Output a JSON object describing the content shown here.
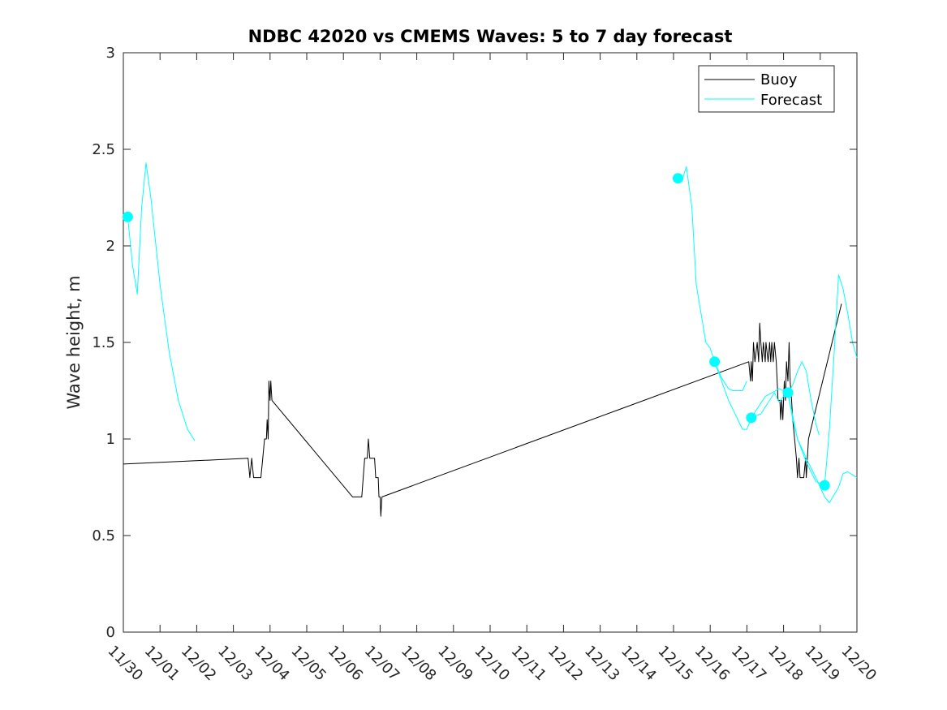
{
  "chart_data": {
    "type": "line",
    "title": "NDBC 42020 vs CMEMS Waves: 5 to 7 day forecast",
    "xlabel": "",
    "ylabel": "Wave height, m",
    "x_unit": "days since 11/30",
    "xlim": [
      0,
      20
    ],
    "ylim": [
      0,
      3
    ],
    "yticks": [
      0,
      0.5,
      1,
      1.5,
      2,
      2.5,
      3
    ],
    "ytick_labels": [
      "0",
      "0.5",
      "1",
      "1.5",
      "2",
      "2.5",
      "3"
    ],
    "xticks": [
      0,
      1,
      2,
      3,
      4,
      5,
      6,
      7,
      8,
      9,
      10,
      11,
      12,
      13,
      14,
      15,
      16,
      17,
      18,
      19,
      20
    ],
    "xtick_labels": [
      "11/30",
      "12/01",
      "12/02",
      "12/03",
      "12/04",
      "12/05",
      "12/06",
      "12/07",
      "12/08",
      "12/09",
      "12/10",
      "12/11",
      "12/12",
      "12/13",
      "12/14",
      "12/15",
      "12/16",
      "12/17",
      "12/18",
      "12/19",
      "12/20"
    ],
    "legend": {
      "placement": "top-right",
      "entries": [
        "Buoy",
        "Forecast"
      ]
    },
    "colors": {
      "buoy": "#000000",
      "forecast": "#00ffff",
      "axis": "#262626"
    },
    "series": [
      {
        "name": "Buoy",
        "color": "#000000",
        "segments": [
          [
            [
              0,
              0.87
            ],
            [
              3.4,
              0.9
            ],
            [
              3.45,
              0.8
            ],
            [
              3.5,
              0.9
            ],
            [
              3.55,
              0.8
            ],
            [
              3.65,
              0.8
            ],
            [
              3.75,
              0.8
            ],
            [
              3.8,
              0.9
            ],
            [
              3.85,
              1.0
            ],
            [
              3.9,
              1.0
            ],
            [
              3.92,
              1.1
            ],
            [
              3.95,
              1.0
            ],
            [
              3.97,
              1.3
            ],
            [
              4.0,
              1.2
            ],
            [
              4.02,
              1.3
            ],
            [
              4.05,
              1.2
            ],
            [
              6.25,
              0.7
            ],
            [
              6.5,
              0.7
            ],
            [
              6.58,
              0.9
            ],
            [
              6.65,
              0.9
            ],
            [
              6.68,
              1.0
            ],
            [
              6.72,
              0.9
            ],
            [
              6.85,
              0.9
            ],
            [
              6.88,
              0.8
            ],
            [
              6.95,
              0.8
            ],
            [
              6.97,
              0.7
            ],
            [
              7.0,
              0.7
            ],
            [
              7.02,
              0.6
            ],
            [
              7.05,
              0.7
            ],
            [
              17.05,
              1.4
            ],
            [
              17.1,
              1.3
            ],
            [
              17.12,
              1.4
            ],
            [
              17.15,
              1.3
            ],
            [
              17.18,
              1.5
            ],
            [
              17.22,
              1.4
            ],
            [
              17.28,
              1.5
            ],
            [
              17.32,
              1.4
            ],
            [
              17.35,
              1.6
            ],
            [
              17.38,
              1.5
            ],
            [
              17.42,
              1.4
            ],
            [
              17.45,
              1.5
            ],
            [
              17.5,
              1.4
            ],
            [
              17.52,
              1.5
            ],
            [
              17.58,
              1.4
            ],
            [
              17.62,
              1.5
            ],
            [
              17.65,
              1.4
            ],
            [
              17.68,
              1.5
            ],
            [
              17.72,
              1.4
            ],
            [
              17.75,
              1.5
            ],
            [
              17.8,
              1.4
            ],
            [
              17.85,
              1.2
            ],
            [
              17.9,
              1.2
            ],
            [
              17.92,
              1.1
            ],
            [
              17.95,
              1.2
            ],
            [
              17.98,
              1.1
            ],
            [
              18.02,
              1.3
            ],
            [
              18.05,
              1.2
            ],
            [
              18.08,
              1.4
            ],
            [
              18.12,
              1.3
            ],
            [
              18.15,
              1.5
            ],
            [
              18.18,
              1.3
            ],
            [
              18.22,
              1.2
            ],
            [
              18.25,
              1.1
            ],
            [
              18.3,
              1.0
            ],
            [
              18.35,
              0.9
            ],
            [
              18.38,
              0.8
            ],
            [
              18.42,
              0.9
            ],
            [
              18.45,
              0.8
            ],
            [
              18.5,
              0.8
            ],
            [
              18.55,
              0.8
            ],
            [
              18.6,
              0.9
            ],
            [
              18.62,
              0.8
            ],
            [
              18.68,
              1.0
            ],
            [
              19.58,
              1.7
            ]
          ]
        ]
      },
      {
        "name": "Forecast",
        "color": "#00ffff",
        "segments": [
          [
            [
              0.12,
              2.15
            ],
            [
              0.25,
              1.9
            ],
            [
              0.38,
              1.75
            ],
            [
              0.5,
              2.2
            ],
            [
              0.62,
              2.43
            ],
            [
              0.75,
              2.25
            ],
            [
              1.0,
              1.8
            ],
            [
              1.25,
              1.45
            ],
            [
              1.5,
              1.2
            ],
            [
              1.75,
              1.05
            ],
            [
              1.95,
              0.99
            ]
          ],
          [
            [
              15.12,
              2.35
            ],
            [
              15.25,
              2.35
            ],
            [
              15.35,
              2.41
            ],
            [
              15.5,
              2.2
            ],
            [
              15.62,
              1.8
            ],
            [
              15.88,
              1.5
            ],
            [
              16.0,
              1.47
            ],
            [
              16.12,
              1.4
            ],
            [
              16.3,
              1.32
            ],
            [
              16.5,
              1.26
            ],
            [
              16.62,
              1.25
            ],
            [
              16.88,
              1.25
            ],
            [
              17.0,
              1.3
            ]
          ],
          [
            [
              16.12,
              1.4
            ],
            [
              16.5,
              1.2
            ],
            [
              16.88,
              1.05
            ],
            [
              17.0,
              1.05
            ],
            [
              17.12,
              1.11
            ],
            [
              17.38,
              1.13
            ],
            [
              17.62,
              1.2
            ],
            [
              17.75,
              1.24
            ],
            [
              17.88,
              1.19
            ],
            [
              18.0,
              1.22
            ],
            [
              18.12,
              1.24
            ],
            [
              18.25,
              1.28
            ],
            [
              18.38,
              1.35
            ],
            [
              18.5,
              1.4
            ],
            [
              18.62,
              1.35
            ],
            [
              18.75,
              1.2
            ],
            [
              18.88,
              1.08
            ],
            [
              18.97,
              1.02
            ]
          ],
          [
            [
              17.12,
              1.11
            ],
            [
              17.5,
              1.22
            ],
            [
              17.88,
              1.26
            ],
            [
              18.12,
              1.24
            ],
            [
              18.25,
              1.1
            ],
            [
              18.38,
              1.0
            ],
            [
              18.62,
              0.9
            ],
            [
              18.88,
              0.8
            ],
            [
              19.12,
              0.7
            ],
            [
              19.25,
              0.67
            ],
            [
              19.5,
              0.75
            ],
            [
              19.62,
              0.82
            ],
            [
              19.75,
              0.83
            ],
            [
              20.0,
              0.8
            ]
          ],
          [
            [
              18.12,
              1.24
            ],
            [
              18.38,
              1.0
            ],
            [
              18.62,
              0.88
            ],
            [
              18.88,
              0.78
            ],
            [
              19.12,
              0.76
            ],
            [
              19.25,
              1.05
            ],
            [
              19.38,
              1.45
            ],
            [
              19.5,
              1.85
            ],
            [
              19.62,
              1.78
            ],
            [
              19.75,
              1.65
            ],
            [
              19.88,
              1.5
            ],
            [
              20.0,
              1.42
            ]
          ]
        ],
        "markers": [
          [
            0.12,
            2.15
          ],
          [
            15.12,
            2.35
          ],
          [
            16.12,
            1.4
          ],
          [
            17.12,
            1.11
          ],
          [
            18.12,
            1.24
          ],
          [
            19.12,
            0.76
          ]
        ]
      }
    ]
  }
}
